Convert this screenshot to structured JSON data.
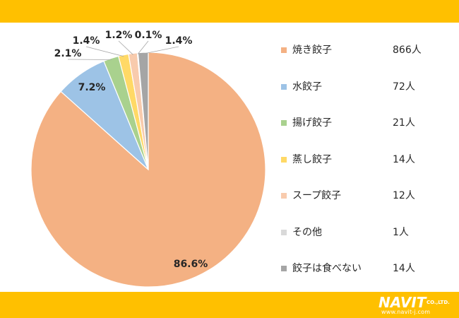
{
  "chart_data": {
    "type": "pie",
    "title": "",
    "legend_position": "right",
    "slices": [
      {
        "label": "焼き餃子",
        "count": "866人",
        "value": 866,
        "percent": "86.6%",
        "color": "#f4b183"
      },
      {
        "label": "水餃子",
        "count": "72人",
        "value": 72,
        "percent": "7.2%",
        "color": "#9dc3e6"
      },
      {
        "label": "揚げ餃子",
        "count": "21人",
        "value": 21,
        "percent": "2.1%",
        "color": "#a9d18e"
      },
      {
        "label": "蒸し餃子",
        "count": "14人",
        "value": 14,
        "percent": "1.4%",
        "color": "#ffd966"
      },
      {
        "label": "スープ餃子",
        "count": "12人",
        "value": 12,
        "percent": "1.2%",
        "color": "#f8cbad"
      },
      {
        "label": "その他",
        "count": "1人",
        "value": 1,
        "percent": "0.1%",
        "color": "#d9d9d9"
      },
      {
        "label": "餃子は食べない",
        "count": "14人",
        "value": 14,
        "percent": "1.4%",
        "color": "#a5a5a5"
      }
    ]
  },
  "logo": {
    "brand": "NAVIT",
    "suffix": "CO.,LTD.",
    "url": "www.navit-j.com"
  }
}
